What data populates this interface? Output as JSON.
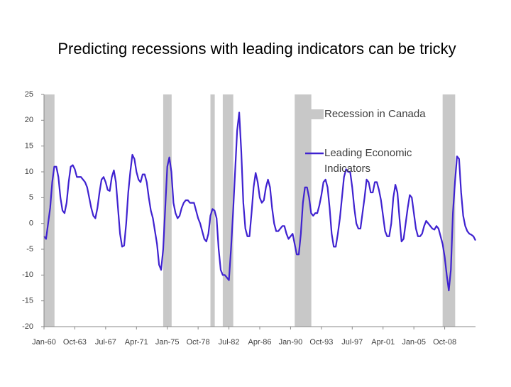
{
  "chart_data": {
    "type": "line",
    "title": "Predicting recessions with leading indicators can be tricky",
    "x": [
      "Jan-60",
      "Apr-60",
      "Jul-60",
      "Oct-60",
      "Jan-61",
      "Apr-61",
      "Jul-61",
      "Oct-61",
      "Jan-62",
      "Apr-62",
      "Jul-62",
      "Oct-62",
      "Jan-63",
      "Apr-63",
      "Jul-63",
      "Oct-63",
      "Jan-64",
      "Apr-64",
      "Jul-64",
      "Oct-64",
      "Jan-65",
      "Apr-65",
      "Jul-65",
      "Oct-65",
      "Jan-66",
      "Apr-66",
      "Jul-66",
      "Oct-66",
      "Jan-67",
      "Apr-67",
      "Jul-67",
      "Oct-67",
      "Jan-68",
      "Apr-68",
      "Jul-68",
      "Oct-68",
      "Jan-69",
      "Apr-69",
      "Jul-69",
      "Oct-69",
      "Jan-70",
      "Apr-70",
      "Jul-70",
      "Oct-70",
      "Jan-71",
      "Apr-71",
      "Jul-71",
      "Oct-71",
      "Jan-72",
      "Apr-72",
      "Jul-72",
      "Oct-72",
      "Jan-73",
      "Apr-73",
      "Jul-73",
      "Oct-73",
      "Jan-74",
      "Apr-74",
      "Jul-74",
      "Oct-74",
      "Jan-75",
      "Apr-75",
      "Jul-75",
      "Oct-75",
      "Jan-76",
      "Apr-76",
      "Jul-76",
      "Oct-76",
      "Jan-77",
      "Apr-77",
      "Jul-77",
      "Oct-77",
      "Jan-78",
      "Apr-78",
      "Jul-78",
      "Oct-78",
      "Jan-79",
      "Apr-79",
      "Jul-79",
      "Oct-79",
      "Jan-80",
      "Apr-80",
      "Jul-80",
      "Oct-80",
      "Jan-81",
      "Apr-81",
      "Jul-81",
      "Oct-81",
      "Jan-82",
      "Apr-82",
      "Jul-82",
      "Oct-82",
      "Jan-83",
      "Apr-83",
      "Jul-83",
      "Oct-83",
      "Jan-84",
      "Apr-84",
      "Jul-84",
      "Oct-84",
      "Jan-85",
      "Apr-85",
      "Jul-85",
      "Oct-85",
      "Jan-86",
      "Apr-86",
      "Jul-86",
      "Oct-86",
      "Jan-87",
      "Apr-87",
      "Jul-87",
      "Oct-87",
      "Jan-88",
      "Apr-88",
      "Jul-88",
      "Oct-88",
      "Jan-89",
      "Apr-89",
      "Jul-89",
      "Oct-89",
      "Jan-90",
      "Apr-90",
      "Jul-90",
      "Oct-90",
      "Jan-91",
      "Apr-91",
      "Jul-91",
      "Oct-91",
      "Jan-92",
      "Apr-92",
      "Jul-92",
      "Oct-92",
      "Jan-93",
      "Apr-93",
      "Jul-93",
      "Oct-93",
      "Jan-94",
      "Apr-94",
      "Jul-94",
      "Oct-94",
      "Jan-95",
      "Apr-95",
      "Jul-95",
      "Oct-95",
      "Jan-96",
      "Apr-96",
      "Jul-96",
      "Oct-96",
      "Jan-97",
      "Apr-97",
      "Jul-97",
      "Oct-97",
      "Jan-98",
      "Apr-98",
      "Jul-98",
      "Oct-98",
      "Jan-99",
      "Apr-99",
      "Jul-99",
      "Oct-99",
      "Jan-00",
      "Apr-00",
      "Jul-00",
      "Oct-00",
      "Jan-01",
      "Apr-01",
      "Jul-01",
      "Oct-01",
      "Jan-02",
      "Apr-02",
      "Jul-02",
      "Oct-02",
      "Jan-03",
      "Apr-03",
      "Jul-03",
      "Oct-03",
      "Jan-04",
      "Apr-04",
      "Jul-04",
      "Oct-04",
      "Jan-05",
      "Apr-05",
      "Jul-05",
      "Oct-05",
      "Jan-06",
      "Apr-06",
      "Jul-06",
      "Oct-06",
      "Jan-07",
      "Apr-07",
      "Jul-07",
      "Oct-07",
      "Jan-08",
      "Apr-08",
      "Jul-08",
      "Oct-08",
      "Jan-09",
      "Apr-09",
      "Jul-09",
      "Oct-09",
      "Jan-10",
      "Apr-10",
      "Jul-10",
      "Oct-10",
      "Jan-11",
      "Apr-11",
      "Jul-11",
      "Oct-11",
      "Jan-12",
      "Apr-12",
      "Jul-12"
    ],
    "xticks": [
      "Jan-60",
      "Oct-63",
      "Jul-67",
      "Apr-71",
      "Jan-75",
      "Oct-78",
      "Jul-82",
      "Apr-86",
      "Jan-90",
      "Oct-93",
      "Jul-97",
      "Apr-01",
      "Jan-05",
      "Oct-08"
    ],
    "ylim": [
      -20,
      25
    ],
    "yticks": [
      -20,
      -15,
      -10,
      -5,
      0,
      5,
      10,
      15,
      20,
      25
    ],
    "series": [
      {
        "name": "Recession in Canada",
        "type": "bar",
        "color": "#c8c8c8",
        "values": [
          25,
          25,
          25,
          25,
          25,
          null,
          null,
          null,
          null,
          null,
          null,
          null,
          null,
          null,
          null,
          null,
          null,
          null,
          null,
          null,
          null,
          null,
          null,
          null,
          null,
          null,
          null,
          null,
          null,
          null,
          null,
          null,
          null,
          null,
          null,
          null,
          null,
          null,
          null,
          null,
          null,
          null,
          null,
          null,
          null,
          null,
          null,
          null,
          null,
          null,
          null,
          null,
          null,
          null,
          null,
          null,
          null,
          null,
          25,
          25,
          25,
          25,
          null,
          null,
          null,
          null,
          null,
          null,
          null,
          null,
          null,
          null,
          null,
          null,
          null,
          null,
          null,
          null,
          null,
          null,
          null,
          25,
          25,
          null,
          null,
          null,
          null,
          25,
          25,
          25,
          25,
          25,
          null,
          null,
          null,
          null,
          null,
          null,
          null,
          null,
          null,
          null,
          null,
          null,
          null,
          null,
          null,
          null,
          null,
          null,
          null,
          null,
          null,
          null,
          null,
          null,
          null,
          null,
          null,
          null,
          null,
          null,
          25,
          25,
          25,
          25,
          25,
          25,
          25,
          25,
          null,
          null,
          null,
          null,
          null,
          null,
          null,
          null,
          null,
          null,
          null,
          null,
          null,
          null,
          null,
          null,
          null,
          null,
          null,
          null,
          null,
          null,
          null,
          null,
          null,
          null,
          null,
          null,
          null,
          null,
          null,
          null,
          null,
          null,
          null,
          null,
          null,
          null,
          null,
          null,
          null,
          null,
          null,
          null,
          null,
          null,
          null,
          null,
          null,
          null,
          null,
          null,
          null,
          null,
          null,
          null,
          null,
          null,
          null,
          null,
          null,
          null,
          null,
          null,
          25,
          25,
          25,
          25,
          25,
          25,
          null,
          null,
          null,
          null,
          null,
          null,
          null,
          null,
          null,
          null,
          null
        ]
      },
      {
        "name": "Leading Economic Indicators",
        "type": "line",
        "color": "#3f22d0",
        "values": [
          -2.5,
          -3,
          0,
          3,
          8,
          11,
          11,
          9,
          5,
          2.5,
          2,
          4,
          8,
          11,
          11.3,
          10.5,
          9,
          9,
          9,
          8.5,
          8,
          7,
          5,
          3,
          1.5,
          1,
          3,
          6,
          8.5,
          9,
          8,
          6.5,
          6.3,
          9,
          10.3,
          8,
          3,
          -2,
          -4.5,
          -4.3,
          0,
          6,
          10,
          13.3,
          12.5,
          10,
          8.5,
          8,
          9.5,
          9.5,
          8,
          5,
          2.5,
          1,
          -1.5,
          -4,
          -8,
          -9,
          -5,
          3,
          11,
          12.8,
          10,
          4,
          2,
          1,
          1.5,
          3,
          4,
          4.5,
          4.5,
          4,
          4,
          4,
          2.5,
          1,
          0,
          -1.5,
          -3,
          -3.5,
          -2,
          1.5,
          2.8,
          2.5,
          1,
          -5,
          -9,
          -10,
          -10,
          -10.5,
          -11,
          -5,
          2,
          10,
          18,
          21.5,
          14,
          4,
          -1,
          -2.5,
          -2.5,
          2,
          7,
          9.8,
          8,
          5,
          4,
          4.5,
          7,
          8.5,
          7,
          3,
          0,
          -1.5,
          -1.5,
          -1,
          -0.5,
          -0.5,
          -2,
          -3,
          -2.5,
          -2,
          -4,
          -6,
          -6,
          -2,
          4,
          7,
          7,
          5,
          2,
          1.5,
          2,
          2,
          3.5,
          5.5,
          8,
          8.5,
          7,
          3,
          -2,
          -4.5,
          -4.5,
          -2,
          1,
          5,
          9,
          10.5,
          10,
          10,
          7,
          3,
          0,
          -1,
          -1,
          2,
          5,
          8.5,
          8,
          6,
          6,
          8,
          8,
          6.5,
          4.5,
          1.5,
          -1.5,
          -2.5,
          -2.5,
          0,
          5,
          7.5,
          6,
          1,
          -3.5,
          -3,
          0,
          3,
          5.5,
          5,
          2,
          -1,
          -2.5,
          -2.5,
          -2,
          -0.5,
          0.5,
          0,
          -0.5,
          -1,
          -1.2,
          -0.5,
          -1,
          -2.5,
          -4,
          -6.5,
          -10,
          -13,
          -9,
          2,
          8,
          13,
          12.5,
          6,
          1.5,
          -0.5,
          -1.5,
          -2,
          -2.2,
          -2.5,
          -3.3
        ]
      }
    ]
  }
}
